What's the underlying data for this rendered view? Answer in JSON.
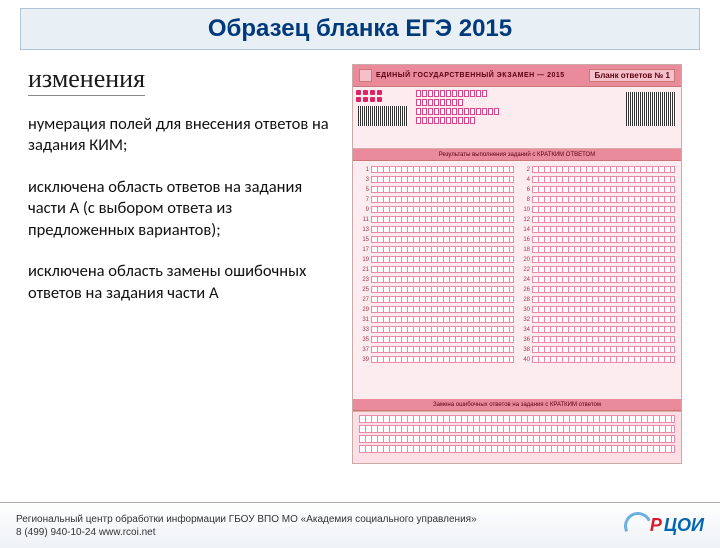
{
  "title": "Образец бланка ЕГЭ 2015",
  "subtitle": "изменения",
  "paragraphs": {
    "p1": "нумерация полей для внесения ответов на задания КИМ;",
    "p2": "исключена область ответов на задания части А (с выбором ответа из предложенных вариантов);",
    "p3": "исключена область замены ошибочных ответов на задания части А"
  },
  "form": {
    "header_text": "ЕДИНЫЙ ГОСУДАРСТВЕННЫЙ ЭКЗАМЕН — 2015",
    "header_right": "Бланк ответов № 1",
    "strip1": "Результаты выполнения заданий с КРАТКИМ ОТВЕТОM",
    "strip2": "Замена ошибочных ответов на задания с КРАТКИМ ответом",
    "row_count": 40,
    "colors": {
      "bg": "#fdecef",
      "accent": "#e98b9a",
      "cell_border": "#e8a",
      "text": "#5a0010"
    }
  },
  "footer": {
    "line1": "Региональный центр обработки информации ГБОУ ВПО МО «Академия социального управления»",
    "line2": "8 (499) 940-10-24 www.rcoi.net",
    "logo_r": "Р",
    "logo_rest": "ЦОИ"
  }
}
